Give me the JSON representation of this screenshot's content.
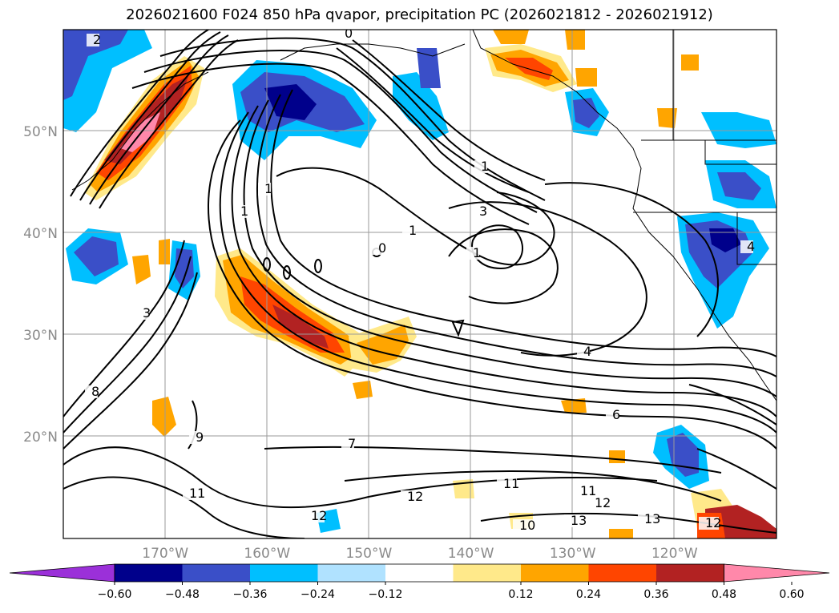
{
  "chart_data": {
    "type": "map-contour",
    "title": "2026021600 F024 850 hPa qvapor, precipitation PC (2026021812 - 2026021912)",
    "lat_ticks": [
      {
        "value": 50,
        "label": "50°N"
      },
      {
        "value": 40,
        "label": "40°N"
      },
      {
        "value": 30,
        "label": "30°N"
      },
      {
        "value": 20,
        "label": "20°N"
      }
    ],
    "lon_ticks": [
      {
        "value": -170,
        "label": "170°W"
      },
      {
        "value": -160,
        "label": "160°W"
      },
      {
        "value": -150,
        "label": "150°W"
      },
      {
        "value": -140,
        "label": "140°W"
      },
      {
        "value": -130,
        "label": "130°W"
      },
      {
        "value": -120,
        "label": "120°W"
      }
    ],
    "extent": {
      "lon": [
        -180,
        -110
      ],
      "lat": [
        10,
        60
      ]
    },
    "colorbar": {
      "ticks": [
        "−0.60",
        "−0.48",
        "−0.36",
        "−0.24",
        "−0.12",
        "0.12",
        "0.24",
        "0.36",
        "0.48",
        "0.60"
      ],
      "bins": [
        {
          "color": "#9b30d9"
        },
        {
          "color": "#00008b"
        },
        {
          "color": "#3a4fc8"
        },
        {
          "color": "#00bfff"
        },
        {
          "color": "#b0e2ff"
        },
        {
          "color": "#ffffff"
        },
        {
          "color": "#ffe98a"
        },
        {
          "color": "#ffa500"
        },
        {
          "color": "#ff4500"
        },
        {
          "color": "#b22222"
        },
        {
          "color": "#ff88aa"
        }
      ]
    },
    "contour_labels": [
      "1",
      "1",
      "1",
      "1",
      "1",
      "3",
      "3",
      "4",
      "4",
      "0",
      "0",
      "2",
      "6",
      "7",
      "8",
      "9",
      "10",
      "11",
      "11",
      "11",
      "12",
      "12",
      "12",
      "13",
      "13",
      "12"
    ]
  }
}
